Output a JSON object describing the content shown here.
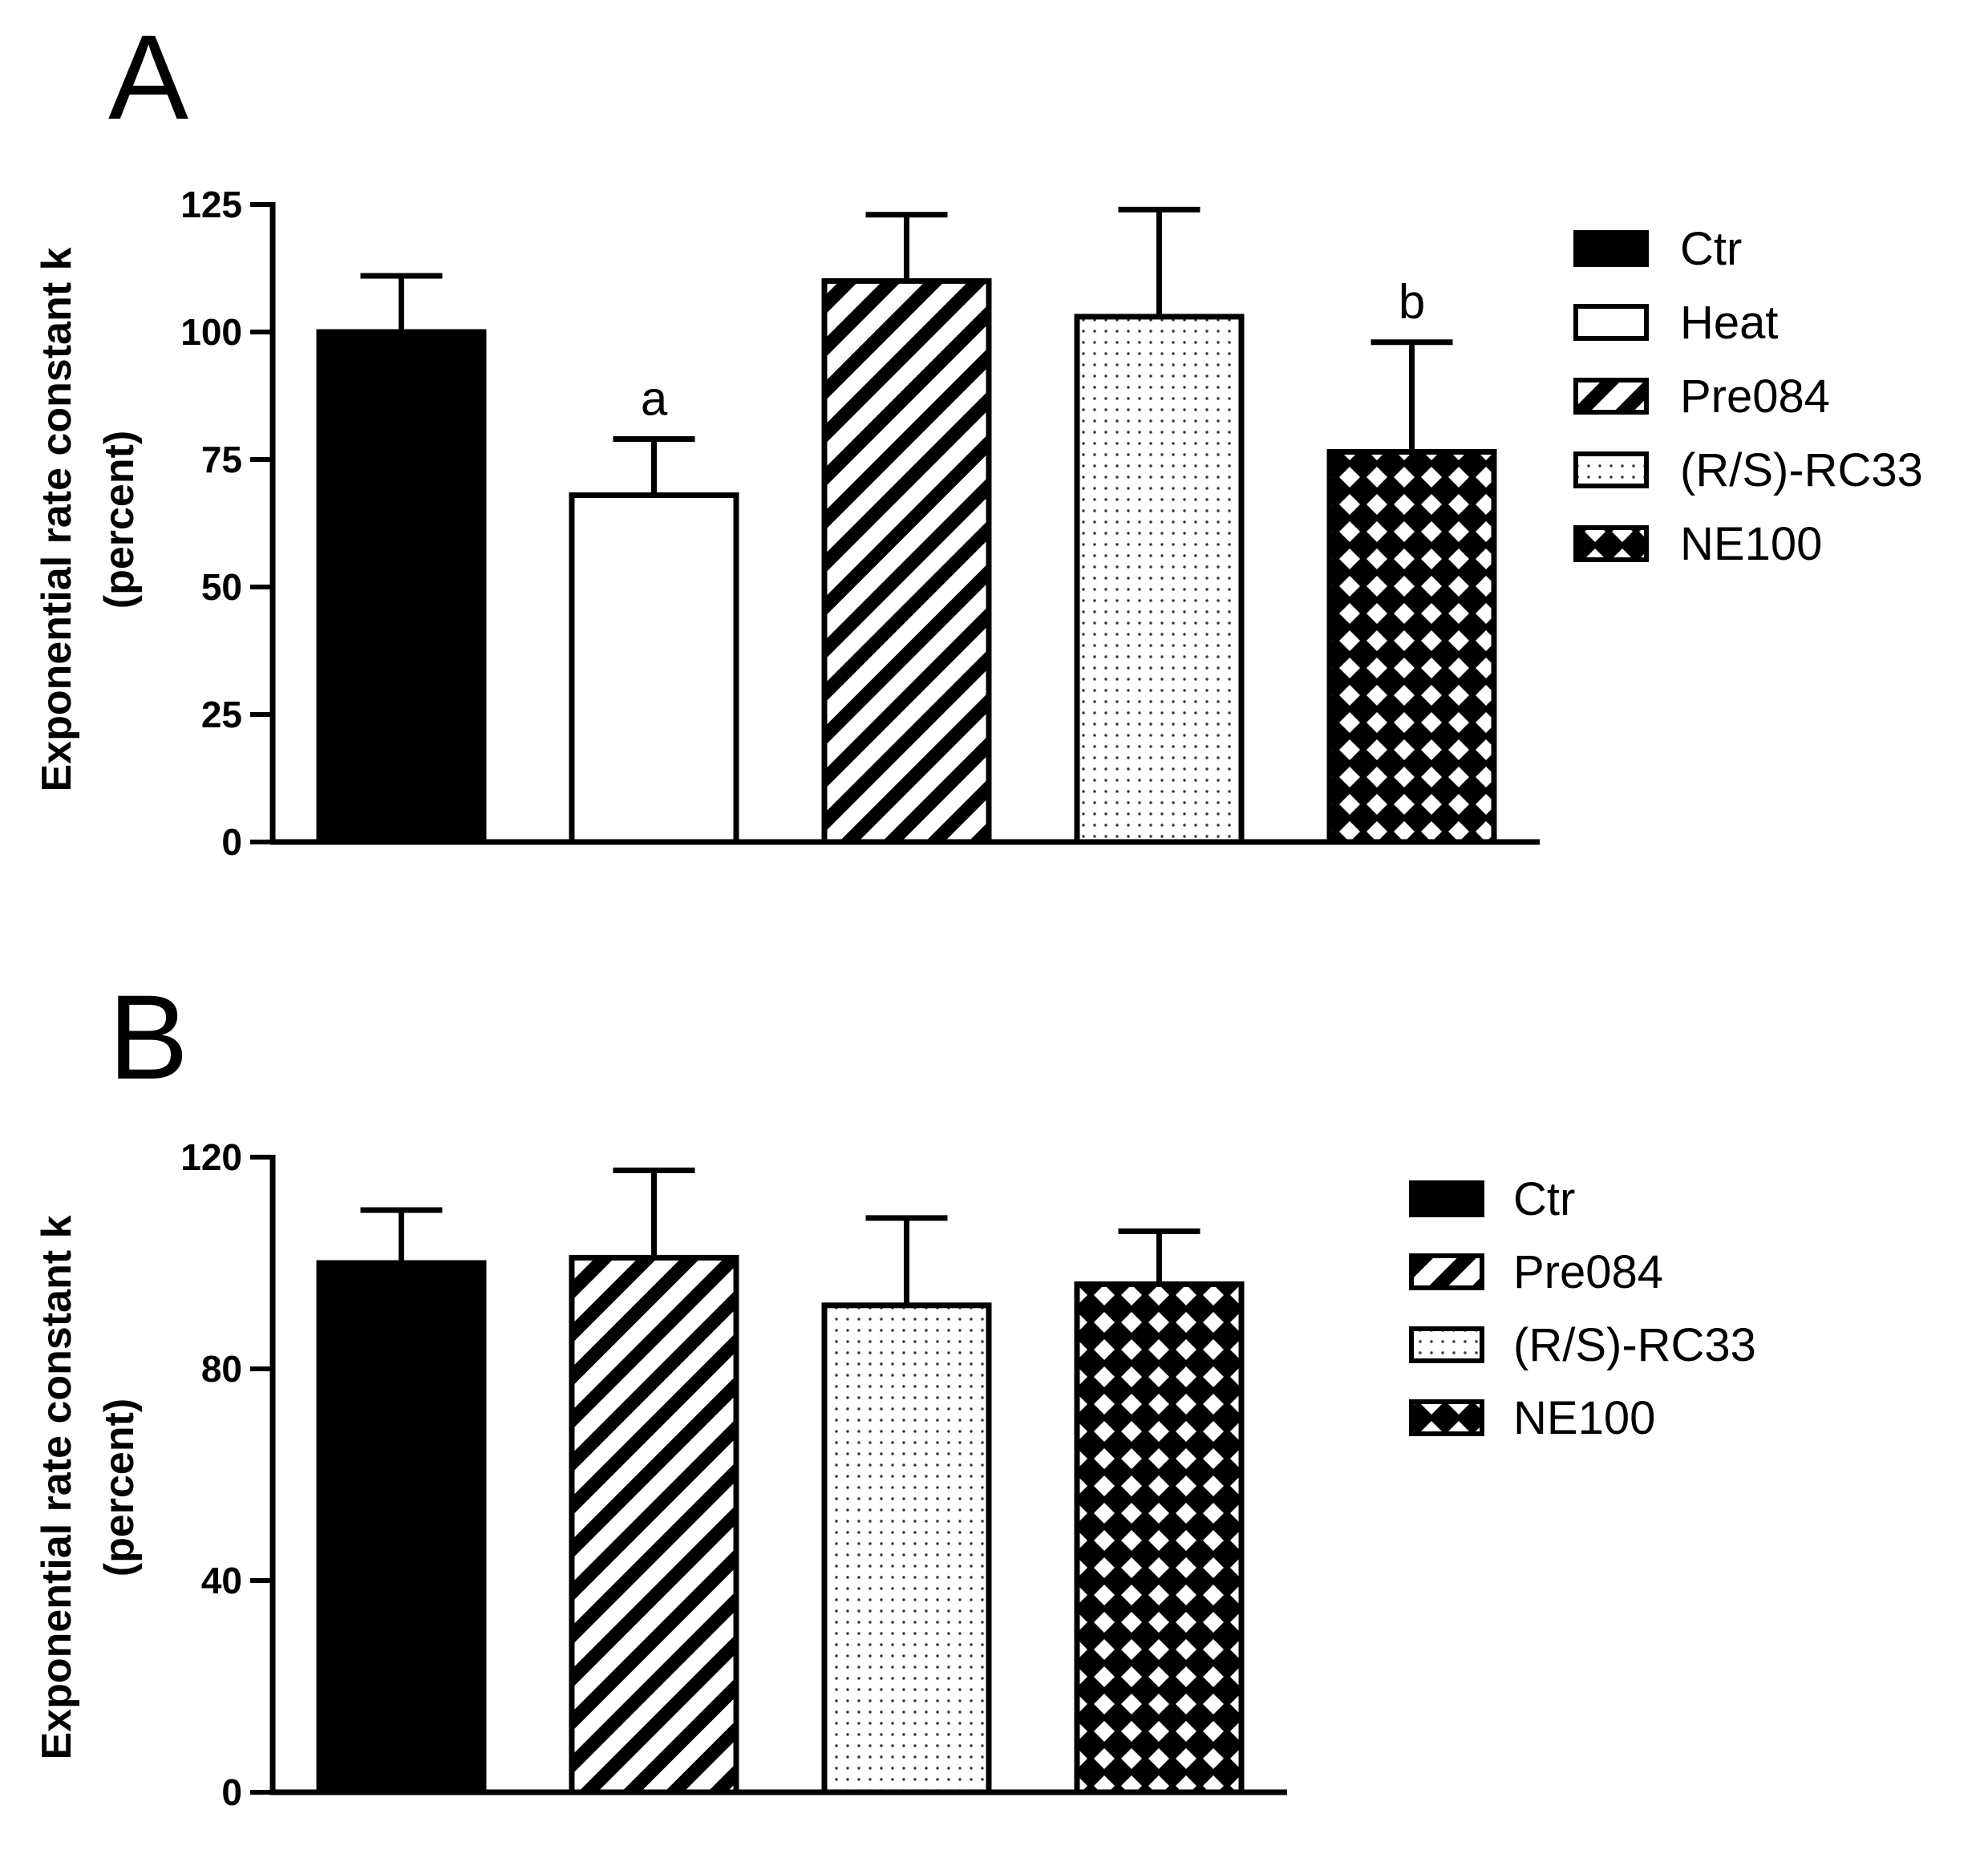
{
  "chart_data": [
    {
      "panel": "A",
      "type": "bar",
      "ylabel_line1": "Exponential rate constant k",
      "ylabel_line2": "(percent)",
      "ylim": [
        0,
        125
      ],
      "yticks": [
        0,
        25,
        50,
        75,
        100,
        125
      ],
      "categories": [
        "Ctr",
        "Heat",
        "Pre084",
        "(R/S)-RC33",
        "NE100"
      ],
      "values": [
        100,
        68,
        110,
        103,
        76.5
      ],
      "errors": [
        11,
        11,
        13,
        21,
        21.5
      ],
      "patterns": [
        "solid",
        "white",
        "hatch",
        "dots",
        "grid"
      ],
      "annotations": [
        "",
        "a",
        "",
        "",
        "b"
      ],
      "legend": [
        "Ctr",
        "Heat",
        "Pre084",
        "(R/S)-RC33",
        "NE100"
      ]
    },
    {
      "panel": "B",
      "type": "bar",
      "ylabel_line1": "Exponential rate constant k",
      "ylabel_line2": "(percent)",
      "ylim": [
        0,
        120
      ],
      "yticks": [
        0,
        40,
        80,
        120
      ],
      "categories": [
        "Ctr",
        "Pre084",
        "(R/S)-RC33",
        "NE100"
      ],
      "values": [
        100,
        101,
        92,
        96
      ],
      "errors": [
        10,
        16.5,
        16.5,
        10
      ],
      "patterns": [
        "solid",
        "hatch",
        "dots",
        "grid"
      ],
      "annotations": [
        "",
        "",
        "",
        ""
      ],
      "legend": [
        "Ctr",
        "Pre084",
        "(R/S)-RC33",
        "NE100"
      ]
    }
  ]
}
